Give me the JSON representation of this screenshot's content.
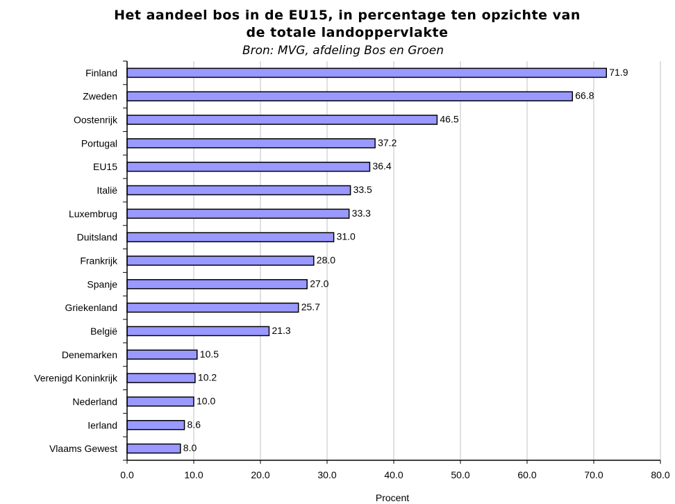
{
  "chart_data": {
    "type": "bar",
    "orientation": "horizontal",
    "title_line1": "Het aandeel bos in de EU15, in percentage ten opzichte van",
    "title_line2": "de totale landoppervlakte",
    "subtitle": "Bron: MVG, afdeling Bos en Groen",
    "xlabel": "Procent",
    "ylabel": "",
    "xlim": [
      0,
      80
    ],
    "x_ticks": [
      "0.0",
      "10.0",
      "20.0",
      "30.0",
      "40.0",
      "50.0",
      "60.0",
      "70.0",
      "80.0"
    ],
    "grid": "vertical",
    "bar_color": "#9999ff",
    "categories": [
      "Finland",
      "Zweden",
      "Oostenrijk",
      "Portugal",
      "EU15",
      "Italië",
      "Luxembrug",
      "Duitsland",
      "Frankrijk",
      "Spanje",
      "Griekenland",
      "België",
      "Denemarken",
      "Verenigd Koninkrijk",
      "Nederland",
      "Ierland",
      "Vlaams Gewest"
    ],
    "values": [
      71.9,
      66.8,
      46.5,
      37.2,
      36.4,
      33.5,
      33.3,
      31.0,
      28.0,
      27.0,
      25.7,
      21.3,
      10.5,
      10.2,
      10.0,
      8.6,
      8.0
    ],
    "value_labels": [
      "71.9",
      "66.8",
      "46.5",
      "37.2",
      "36.4",
      "33.5",
      "33.3",
      "31.0",
      "28.0",
      "27.0",
      "25.7",
      "21.3",
      "10.5",
      "10.2",
      "10.0",
      "8.6",
      "8.0"
    ]
  }
}
